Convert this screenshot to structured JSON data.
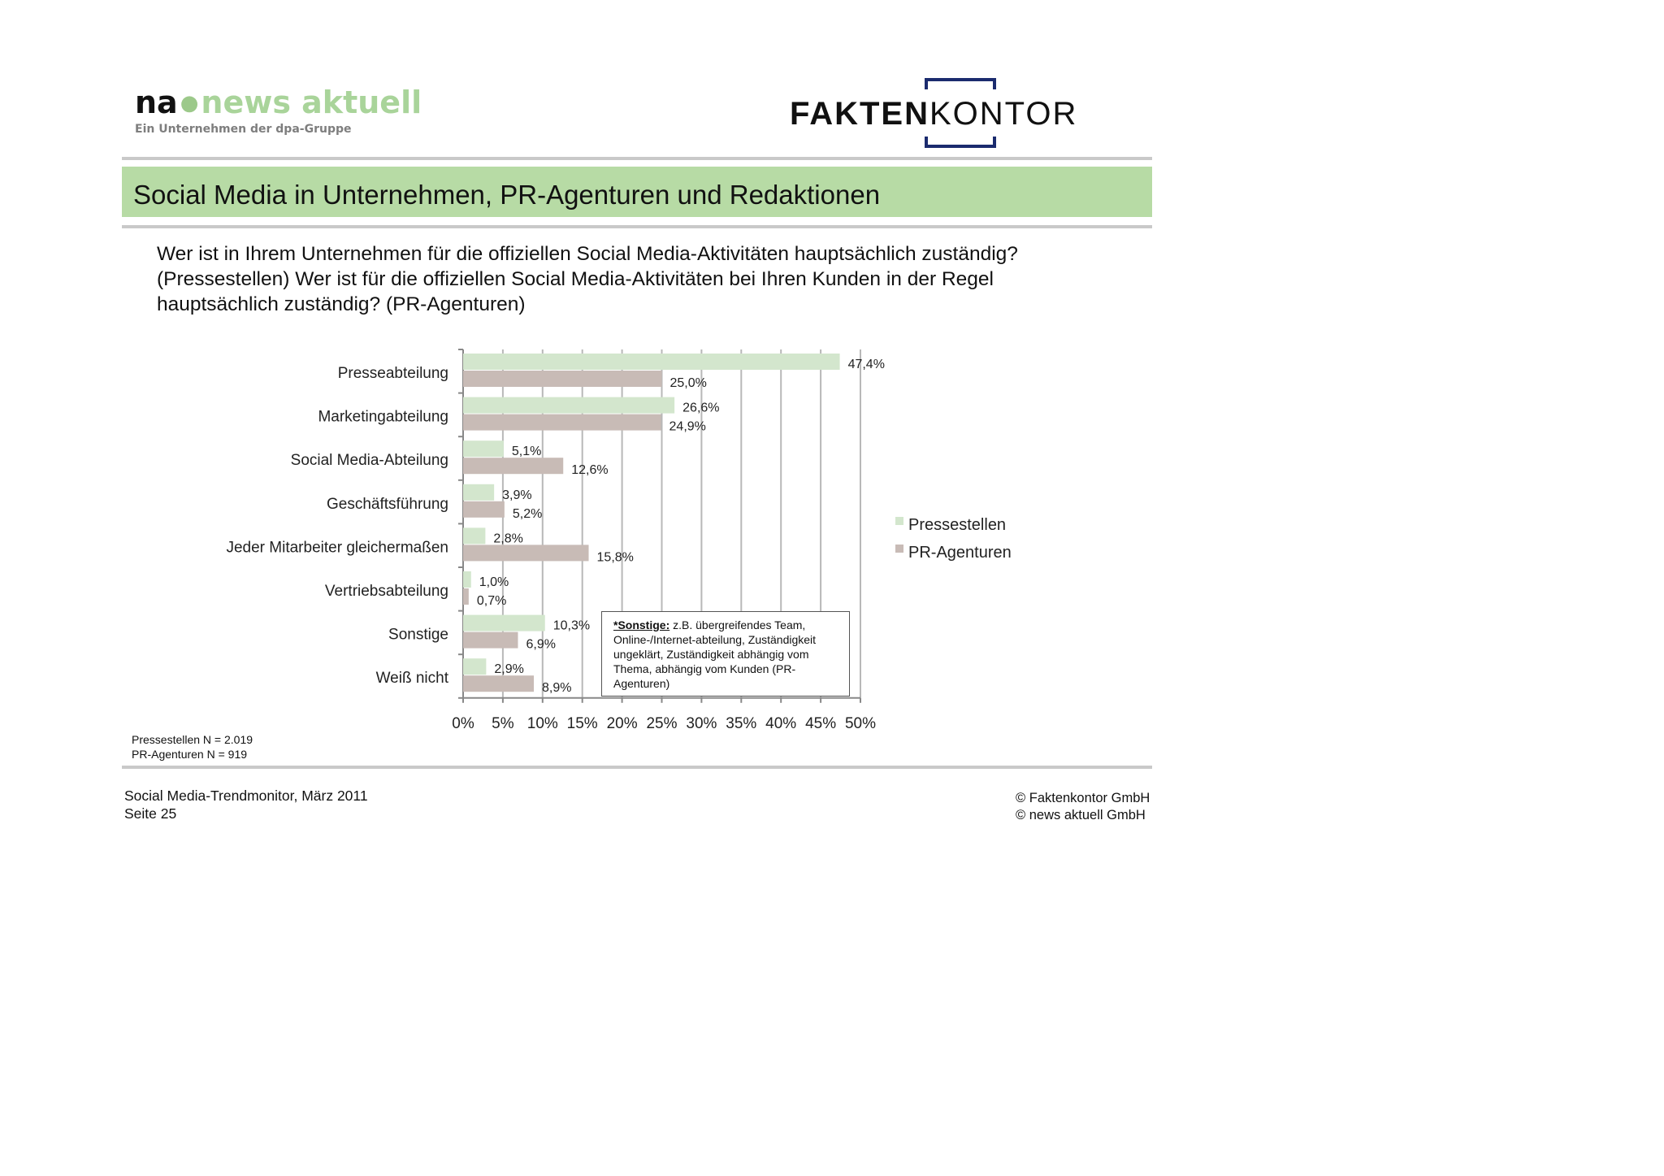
{
  "logos": {
    "news_aktuell": {
      "na": "na",
      "name": "news aktuell",
      "tagline": "Ein Unternehmen der dpa-Gruppe"
    },
    "faktenkontor": {
      "part_bold": "FAKTEN",
      "part_regular": "KONTOR",
      "bracket_color": "#1b2b6e"
    }
  },
  "title": "Social Media in Unternehmen, PR-Agenturen und Redaktionen",
  "title_bar_color": "#b7dba5",
  "question_lines": [
    "Wer ist in Ihrem Unternehmen für die offiziellen Social Media-Aktivitäten hauptsächlich zuständig?",
    "(Pressestellen) Wer ist für die offiziellen Social Media-Aktivitäten bei Ihren Kunden in der Regel",
    "hauptsächlich zuständig? (PR-Agenturen)"
  ],
  "chart_data": {
    "type": "bar",
    "orientation": "horizontal",
    "categories": [
      "Presseabteilung",
      "Marketingabteilung",
      "Social Media-Abteilung",
      "Geschäftsführung",
      "Jeder Mitarbeiter gleichermaßen",
      "Vertriebsabteilung",
      "Sonstige",
      "Weiß nicht"
    ],
    "series": [
      {
        "name": "Pressestellen",
        "color": "#d3e6cd",
        "values": [
          47.4,
          26.6,
          5.1,
          3.9,
          2.8,
          1.0,
          10.3,
          2.9
        ],
        "labels": [
          "47,4%",
          "26,6%",
          "5,1%",
          "3,9%",
          "2,8%",
          "1,0%",
          "10,3%",
          "2,9%"
        ]
      },
      {
        "name": "PR-Agenturen",
        "color": "#c8bbb6",
        "values": [
          25.0,
          24.9,
          12.6,
          5.2,
          15.8,
          0.7,
          6.9,
          8.9
        ],
        "labels": [
          "25,0%",
          "24,9%",
          "12,6%",
          "5,2%",
          "15,8%",
          "0,7%",
          "6,9%",
          "8,9%"
        ]
      }
    ],
    "xlim": [
      0,
      50
    ],
    "x_ticks": [
      "0%",
      "5%",
      "10%",
      "15%",
      "20%",
      "25%",
      "30%",
      "35%",
      "40%",
      "45%",
      "50%"
    ],
    "grid": true,
    "legend_position": "right"
  },
  "note": {
    "highlight": "*Sonstige:",
    "text": " z.B. übergreifendes Team, Online-/Internet-abteilung, Zuständigkeit ungeklärt, Zuständigkeit abhängig vom Thema, abhängig vom Kunden (PR-Agenturen)"
  },
  "sample_sizes": [
    "Pressestellen N = 2.019",
    "PR-Agenturen N = 919"
  ],
  "footer_left": [
    "Social Media-Trendmonitor, März 2011",
    "Seite 25"
  ],
  "footer_right": [
    "© Faktenkontor GmbH",
    "© news aktuell GmbH"
  ]
}
